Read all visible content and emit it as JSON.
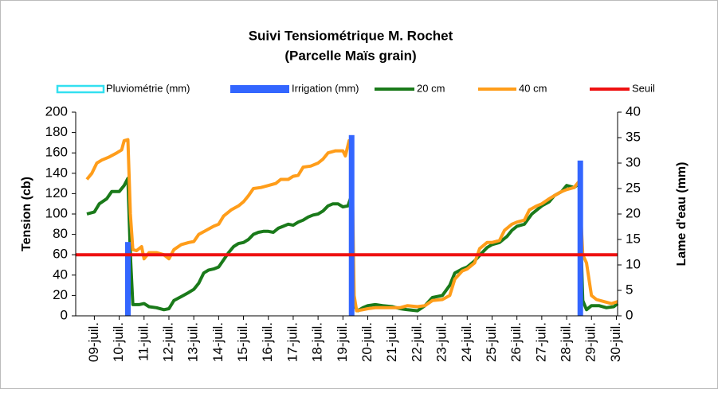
{
  "chart_data": {
    "type": "line",
    "title": "Suivi Tensiométrique M. Rochet",
    "subtitle": "(Parcelle Maïs grain)",
    "ylabel": "Tension (cb)",
    "y2label": "Lame d'eau (mm)",
    "xlim": [
      8.25,
      30.05
    ],
    "xticks": [
      {
        "value": 9,
        "label": "09-juil."
      },
      {
        "value": 10,
        "label": "10-juil."
      },
      {
        "value": 11,
        "label": "11-juil."
      },
      {
        "value": 12,
        "label": "12-juil."
      },
      {
        "value": 13,
        "label": "13-juil."
      },
      {
        "value": 14,
        "label": "14-juil."
      },
      {
        "value": 15,
        "label": "15-juil."
      },
      {
        "value": 16,
        "label": "16-juil."
      },
      {
        "value": 17,
        "label": "17-juil."
      },
      {
        "value": 18,
        "label": "18-juil."
      },
      {
        "value": 19,
        "label": "19-juil."
      },
      {
        "value": 20,
        "label": "20-juil."
      },
      {
        "value": 21,
        "label": "21-juil."
      },
      {
        "value": 22,
        "label": "22-juil."
      },
      {
        "value": 23,
        "label": "23-juil."
      },
      {
        "value": 24,
        "label": "24-juil."
      },
      {
        "value": 25,
        "label": "25-juil."
      },
      {
        "value": 26,
        "label": "26-juil."
      },
      {
        "value": 27,
        "label": "27-juil."
      },
      {
        "value": 28,
        "label": "28-juil."
      },
      {
        "value": 29,
        "label": "29-juil."
      },
      {
        "value": 30,
        "label": "30-juil."
      }
    ],
    "ylim": [
      0,
      200
    ],
    "yticks": [
      0,
      20,
      40,
      60,
      80,
      100,
      120,
      140,
      160,
      180,
      200
    ],
    "y2lim": [
      0,
      40
    ],
    "y2ticks": [
      0,
      5,
      10,
      15,
      20,
      25,
      30,
      35,
      40
    ],
    "grid": false,
    "legend": "top",
    "series": [
      {
        "name": "Pluviométrie (mm)",
        "type": "bar",
        "axis": "y2",
        "color": "#33e0f0",
        "x": [],
        "values": []
      },
      {
        "name": "Irrigation (mm)",
        "type": "bar",
        "axis": "y2",
        "color": "#3366ff",
        "x": [
          10.35,
          19.35,
          28.55
        ],
        "values": [
          14.5,
          35.5,
          30.5
        ]
      },
      {
        "name": "20 cm",
        "type": "line",
        "color": "#1a7a1a",
        "x": [
          8.7,
          9.0,
          9.2,
          9.5,
          9.7,
          10.0,
          10.2,
          10.35,
          10.45,
          10.55,
          10.8,
          11.0,
          11.2,
          11.5,
          11.8,
          12.0,
          12.2,
          12.5,
          12.8,
          13.0,
          13.2,
          13.4,
          13.6,
          13.8,
          14.0,
          14.2,
          14.4,
          14.6,
          14.8,
          15.0,
          15.2,
          15.4,
          15.6,
          15.8,
          16.0,
          16.2,
          16.4,
          16.6,
          16.8,
          17.0,
          17.2,
          17.4,
          17.6,
          17.8,
          18.0,
          18.2,
          18.4,
          18.6,
          18.8,
          19.0,
          19.2,
          19.3,
          19.45,
          19.6,
          19.8,
          20.0,
          20.3,
          20.6,
          21.0,
          21.3,
          21.6,
          22.0,
          22.3,
          22.6,
          23.0,
          23.3,
          23.5,
          23.8,
          24.0,
          24.3,
          24.6,
          24.8,
          25.0,
          25.3,
          25.6,
          25.8,
          26.0,
          26.3,
          26.6,
          26.8,
          27.0,
          27.3,
          27.5,
          27.8,
          28.0,
          28.3,
          28.5,
          28.65,
          28.8,
          29.0,
          29.3,
          29.6,
          29.9,
          30.05
        ],
        "values": [
          100,
          102,
          110,
          115,
          122,
          122,
          128,
          135,
          60,
          11,
          11,
          12,
          9,
          8,
          6,
          7,
          15,
          19,
          23,
          26,
          32,
          42,
          45,
          46,
          48,
          55,
          62,
          68,
          71,
          72,
          75,
          80,
          82,
          83,
          83,
          82,
          86,
          88,
          90,
          89,
          92,
          94,
          97,
          99,
          100,
          103,
          108,
          110,
          110,
          107,
          108,
          115,
          10,
          5,
          8,
          10,
          11,
          10,
          9,
          7,
          6,
          5,
          10,
          18,
          20,
          30,
          42,
          46,
          48,
          54,
          62,
          67,
          70,
          72,
          78,
          84,
          88,
          90,
          100,
          104,
          108,
          112,
          118,
          122,
          128,
          126,
          130,
          15,
          6,
          10,
          10,
          8,
          9,
          12
        ]
      },
      {
        "name": "40 cm",
        "type": "line",
        "color": "#ff9d1a",
        "x": [
          8.7,
          8.9,
          9.1,
          9.3,
          9.6,
          9.9,
          10.1,
          10.2,
          10.35,
          10.45,
          10.55,
          10.7,
          10.9,
          11.0,
          11.2,
          11.5,
          11.8,
          12.0,
          12.2,
          12.5,
          12.8,
          13.0,
          13.2,
          13.5,
          13.8,
          14.0,
          14.2,
          14.5,
          14.8,
          15.0,
          15.2,
          15.4,
          15.7,
          16.0,
          16.3,
          16.5,
          16.8,
          17.0,
          17.2,
          17.4,
          17.7,
          18.0,
          18.2,
          18.4,
          18.7,
          19.0,
          19.1,
          19.25,
          19.35,
          19.45,
          19.55,
          19.8,
          20.0,
          20.3,
          20.6,
          21.0,
          21.3,
          21.6,
          22.0,
          22.3,
          22.6,
          23.0,
          23.3,
          23.5,
          23.8,
          24.0,
          24.3,
          24.5,
          24.8,
          25.0,
          25.3,
          25.5,
          25.8,
          26.0,
          26.3,
          26.5,
          26.8,
          27.0,
          27.3,
          27.5,
          27.8,
          28.0,
          28.3,
          28.5,
          28.65,
          28.8,
          29.0,
          29.2,
          29.5,
          29.8,
          30.05
        ],
        "values": [
          134,
          140,
          150,
          153,
          156,
          160,
          163,
          172,
          173,
          100,
          65,
          64,
          68,
          56,
          62,
          62,
          60,
          56,
          65,
          70,
          72,
          73,
          80,
          84,
          88,
          90,
          98,
          104,
          108,
          112,
          118,
          125,
          126,
          128,
          130,
          134,
          134,
          137,
          138,
          146,
          147,
          150,
          154,
          160,
          162,
          162,
          157,
          172,
          172,
          20,
          5,
          6,
          7,
          8,
          8,
          8,
          8,
          10,
          9,
          10,
          15,
          16,
          20,
          36,
          44,
          46,
          52,
          66,
          72,
          72,
          74,
          84,
          90,
          92,
          94,
          104,
          108,
          110,
          115,
          118,
          122,
          124,
          126,
          132,
          60,
          52,
          20,
          16,
          14,
          12,
          14
        ]
      },
      {
        "name": "Seuil",
        "type": "hline",
        "color": "#ee1111",
        "values": [
          60
        ]
      }
    ]
  }
}
